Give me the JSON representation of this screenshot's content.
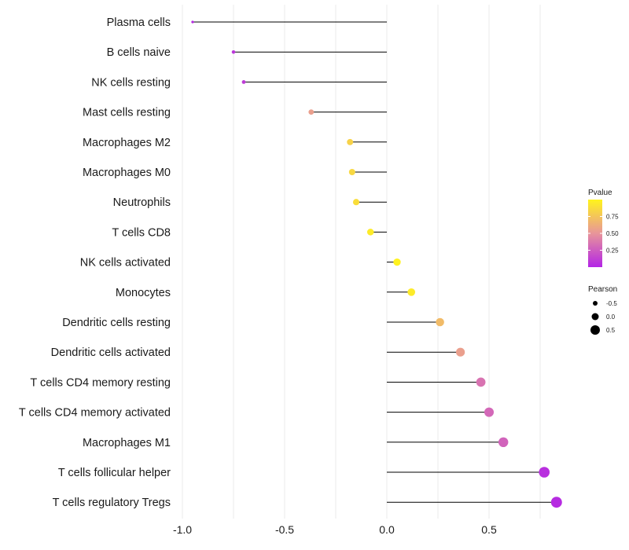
{
  "chart_data": {
    "type": "lollipop",
    "title": "",
    "xlabel": "",
    "ylabel": "",
    "xlim": [
      -1.0,
      0.9
    ],
    "xticks": [
      "-1.0",
      "-0.5",
      "0.0",
      "0.5"
    ],
    "xtick_values": [
      -1.0,
      -0.5,
      0.0,
      0.5
    ],
    "grid": true,
    "categories": [
      "Plasma cells",
      "B cells naive",
      "NK cells resting",
      "Mast cells resting",
      "Macrophages M2",
      "Macrophages M0",
      "Neutrophils",
      "T cells CD8",
      "NK cells activated",
      "Monocytes",
      "Dendritic cells resting",
      "Dendritic cells activated",
      "T cells CD4 memory resting",
      "T cells CD4 memory activated",
      "Macrophages M1",
      "T cells follicular helper",
      "T cells regulatory  Tregs"
    ],
    "values": [
      -0.95,
      -0.75,
      -0.7,
      -0.37,
      -0.18,
      -0.17,
      -0.15,
      -0.08,
      0.05,
      0.12,
      0.26,
      0.36,
      0.46,
      0.5,
      0.57,
      0.77,
      0.83
    ],
    "pvalues": [
      0.02,
      0.08,
      0.1,
      0.55,
      0.82,
      0.85,
      0.88,
      0.95,
      0.99,
      0.95,
      0.7,
      0.55,
      0.35,
      0.3,
      0.28,
      0.05,
      0.03
    ],
    "legend_color": {
      "title": "Pvalue",
      "ticks": [
        "0.75",
        "0.50",
        "0.25"
      ],
      "tick_values": [
        0.75,
        0.5,
        0.25
      ],
      "range": [
        0.0,
        1.0
      ],
      "low_color": "#b324e6",
      "mid_color": "#e8959a",
      "high_color": "#fff41c"
    },
    "legend_size": {
      "title": "Pearson",
      "labels": [
        "-0.5",
        "0.0",
        "0.5"
      ],
      "values": [
        -0.5,
        0.0,
        0.5
      ]
    },
    "legend_position": "right"
  }
}
